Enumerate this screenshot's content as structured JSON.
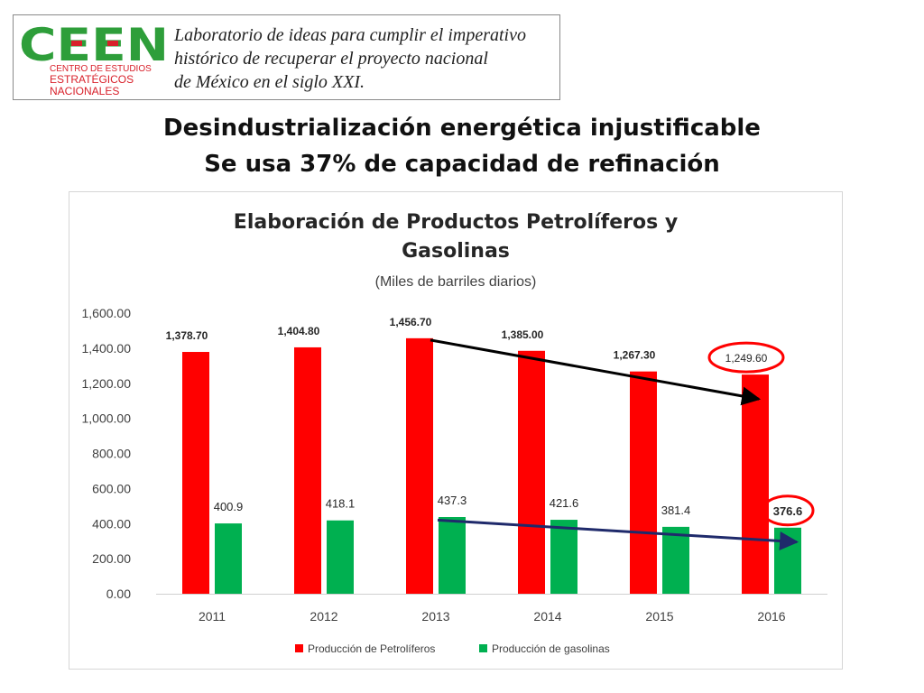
{
  "header": {
    "logo": {
      "text_big": "CEEN",
      "line1": "CENTRO DE ESTUDIOS",
      "line2": "ESTRATÉGICOS",
      "line3": "NACIONALES",
      "color_green": "#2e9e3a",
      "color_red": "#d8202a"
    },
    "tagline": [
      "Laboratorio de ideas para cumplir el imperativo",
      "histórico de recuperar el proyecto nacional",
      "de México en el siglo XXI."
    ]
  },
  "slide_title": [
    "Desindustrialización energética injustificable",
    "Se usa 37% de capacidad de refinación"
  ],
  "chart_data": {
    "type": "bar",
    "title": [
      "Elaboración de Productos Petrolíferos  y",
      "Gasolinas"
    ],
    "subtitle": "(Miles de barriles diarios)",
    "categories": [
      "2011",
      "2012",
      "2013",
      "2014",
      "2015",
      "2016"
    ],
    "ylim": [
      0,
      1600
    ],
    "yticks": [
      0,
      200,
      400,
      600,
      800,
      1000,
      1200,
      1400,
      1600
    ],
    "ytick_labels": [
      "0.00",
      "200.00",
      "400.00",
      "600.00",
      "800.00",
      "1,000.00",
      "1,200.00",
      "1,400.00",
      "1,600.00"
    ],
    "series": [
      {
        "name": "Producción de Petrolíferos",
        "color": "#ff0000",
        "values": [
          1378.7,
          1404.8,
          1456.7,
          1385.0,
          1267.3,
          1249.6
        ],
        "labels": [
          "1,378.70",
          "1,404.80",
          "1,456.70",
          "1,385.00",
          "1,267.30",
          "1,249.60"
        ]
      },
      {
        "name": "Producción de gasolinas",
        "color": "#00b050",
        "values": [
          400.9,
          418.1,
          437.3,
          421.6,
          381.4,
          376.6
        ],
        "labels": [
          "400.9",
          "418.1",
          "437.3",
          "421.6",
          "381.4",
          "376.6"
        ]
      }
    ],
    "annotations": {
      "trend_petroliferos": {
        "from_category": "2013",
        "to_category": "2016",
        "from_value": 1456.7,
        "to_value": 1110,
        "color": "#000000"
      },
      "trend_gasolinas": {
        "from_category": "2013",
        "to_category": "2016",
        "from_value": 420,
        "to_value": 295,
        "color": "#1f2a6b"
      },
      "highlight_circles": [
        {
          "series": 0,
          "category": "2016",
          "color": "#ff0000"
        },
        {
          "series": 1,
          "category": "2016",
          "color": "#ff0000"
        }
      ]
    },
    "legend_position": "bottom"
  }
}
